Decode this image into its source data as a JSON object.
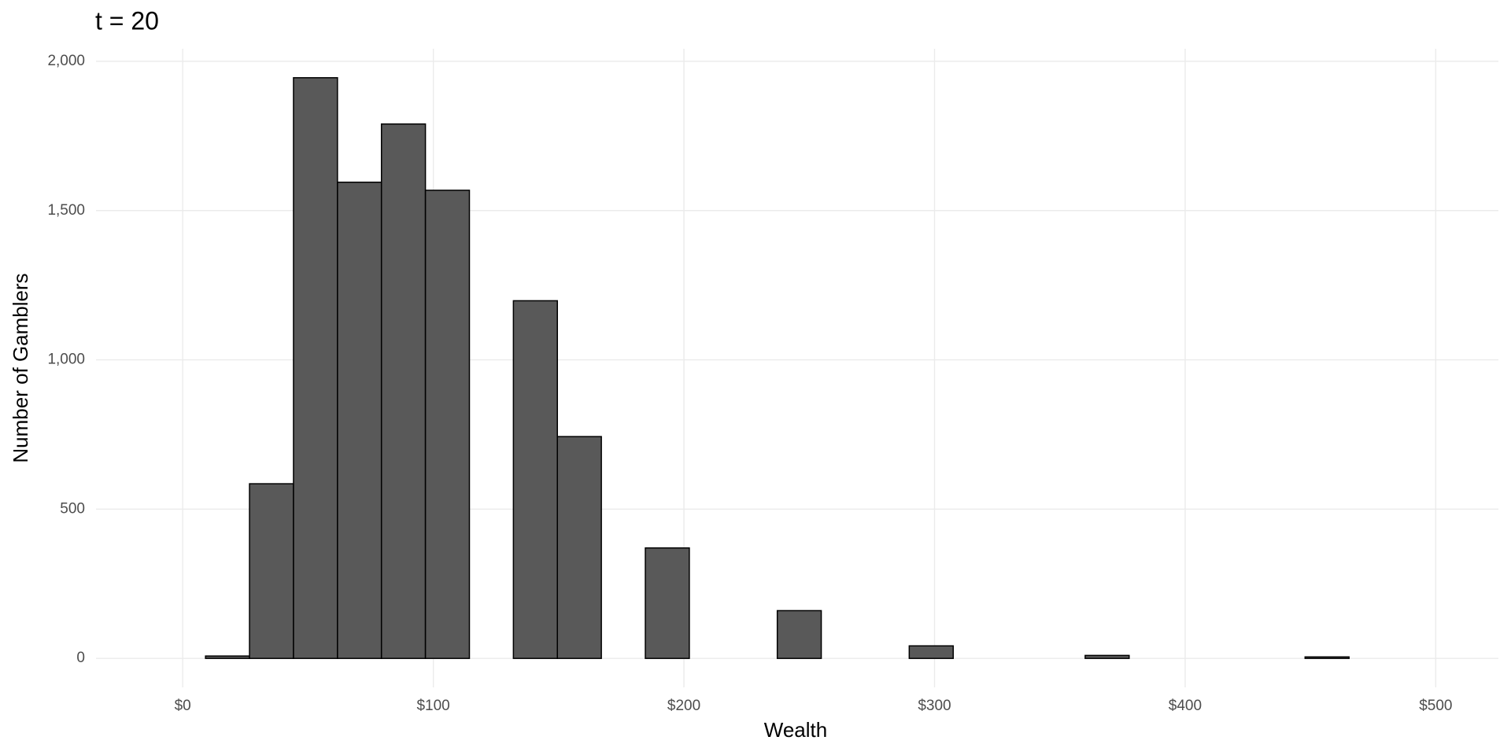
{
  "chart_data": {
    "type": "histogram",
    "title": "t = 20",
    "x_label": "Wealth",
    "y_label": "Number of Gamblers",
    "bins": [
      -8.45,
      9.1,
      26.65,
      44.2,
      61.75,
      79.3,
      96.85,
      114.4,
      131.95,
      149.5,
      167.05,
      184.6,
      202.15,
      219.7,
      237.25,
      254.8,
      272.35,
      289.9,
      307.45,
      325,
      342.55,
      360.1,
      377.65,
      395.2,
      412.75,
      430.3,
      447.85,
      465.4,
      482.95
    ],
    "counts": [
      0,
      8,
      585,
      1945,
      1595,
      1790,
      1568,
      0,
      1198,
      743,
      0,
      370,
      0,
      0,
      160,
      0,
      0,
      42,
      0,
      0,
      0,
      10,
      0,
      0,
      0,
      0,
      5,
      0
    ],
    "color": "#595959",
    "edgecolor": "#000000",
    "xlim": [
      -34.6,
      525
    ],
    "ylim": [
      -97,
      2042
    ],
    "xticks": [
      {
        "value": 0,
        "label": "$0"
      },
      {
        "value": 100,
        "label": "$100"
      },
      {
        "value": 200,
        "label": "$200"
      },
      {
        "value": 300,
        "label": "$300"
      },
      {
        "value": 400,
        "label": "$400"
      },
      {
        "value": 500,
        "label": "$500"
      }
    ],
    "yticks": [
      0,
      500,
      {
        "value": 1000,
        "label": "1,000"
      },
      {
        "value": 1500,
        "label": "1,500"
      },
      {
        "value": 2000,
        "label": "2,000"
      }
    ],
    "grid": true
  }
}
